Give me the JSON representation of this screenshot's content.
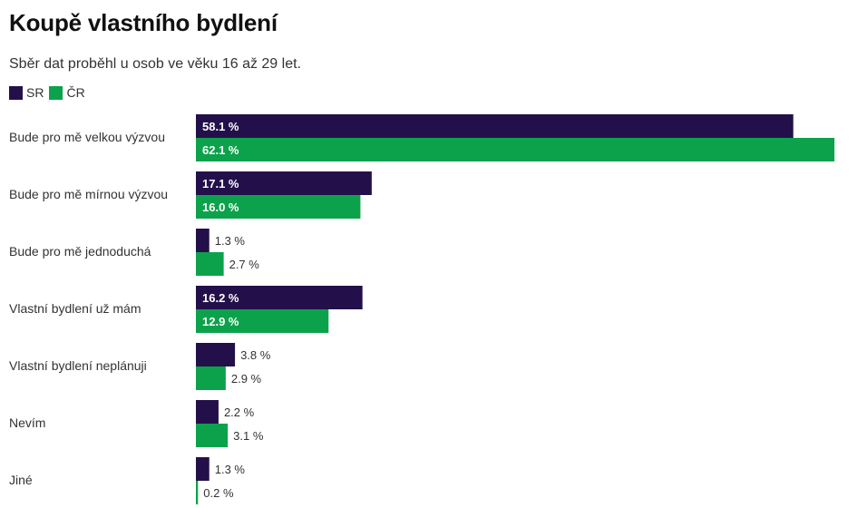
{
  "chart_data": {
    "type": "bar",
    "orientation": "horizontal",
    "title": "Koupě vlastního bydlení",
    "subtitle": "Sběr dat proběhl u osob ve věku 16 až 29 let.",
    "categories": [
      "Bude pro mě velkou výzvou",
      "Bude pro mě mírnou výzvou",
      "Bude pro mě jednoduchá",
      "Vlastní bydlení už mám",
      "Vlastní bydlení neplánuji",
      "Nevím",
      "Jiné"
    ],
    "series": [
      {
        "name": "SR",
        "color": "#23104a",
        "values": [
          58.1,
          17.1,
          1.3,
          16.2,
          3.8,
          2.2,
          1.3
        ],
        "labels": [
          "58.1 %",
          "17.1 %",
          "1.3 %",
          "16.2 %",
          "3.8 %",
          "2.2 %",
          "1.3 %"
        ]
      },
      {
        "name": "ČR",
        "color": "#0ca24b",
        "values": [
          62.1,
          16.0,
          2.7,
          12.9,
          2.9,
          3.1,
          0.2
        ],
        "labels": [
          "62.1 %",
          "16.0 %",
          "2.7 %",
          "12.9 %",
          "2.9 %",
          "3.1 %",
          "0.2 %"
        ]
      }
    ],
    "xlim": [
      0,
      62.1
    ],
    "legend_position": "top-left",
    "grid": false
  }
}
